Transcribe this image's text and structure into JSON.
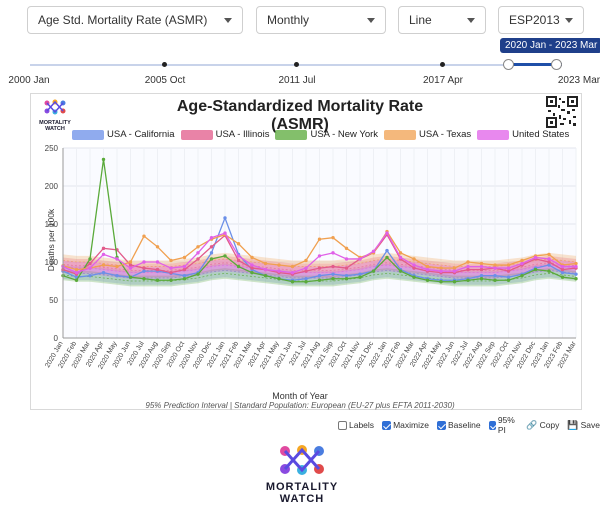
{
  "controls": {
    "metric": "Age Std. Mortality Rate (ASMR)",
    "period": "Monthly",
    "chart_style": "Line",
    "standard": "ESP2013"
  },
  "slider": {
    "ticks": [
      "2000 Jan",
      "2005 Oct",
      "2011 Jul",
      "2017 Apr",
      "2023 Mar"
    ],
    "range_label": "2020 Jan - 2023 Mar"
  },
  "brand": {
    "line1": "MORTALITY",
    "line2": "WATCH"
  },
  "toolbar": {
    "labels": "Labels",
    "maximize": "Maximize",
    "baseline": "Baseline",
    "pi": "95% PI",
    "copy": "Copy",
    "save": "Save"
  },
  "colors": {
    "california": "#6b8fe8",
    "illinois": "#e25a8a",
    "new_york": "#5aaa3a",
    "texas": "#f0a050",
    "united_states": "#e060e8",
    "accent": "#1f3f8a"
  },
  "chart_data": {
    "type": "line",
    "title": "Age-Standardized Mortality Rate (ASMR)",
    "xlabel": "Month of Year",
    "ylabel": "Deaths per 100k",
    "caption": "95% Prediction Interval | Standard Population: European (EU-27 plus EFTA 2011-2030)",
    "ylim": [
      0,
      250
    ],
    "yticks": [
      0,
      50,
      100,
      150,
      200,
      250
    ],
    "grid": true,
    "legend_position": "top",
    "categories": [
      "2020 Jan",
      "2020 Feb",
      "2020 Mar",
      "2020 Apr",
      "2020 May",
      "2020 Jun",
      "2020 Jul",
      "2020 Aug",
      "2020 Sep",
      "2020 Oct",
      "2020 Nov",
      "2020 Dec",
      "2021 Jan",
      "2021 Feb",
      "2021 Mar",
      "2021 Apr",
      "2021 May",
      "2021 Jun",
      "2021 Jul",
      "2021 Aug",
      "2021 Sep",
      "2021 Oct",
      "2021 Nov",
      "2021 Dec",
      "2022 Jan",
      "2022 Feb",
      "2022 Mar",
      "2022 Apr",
      "2022 May",
      "2022 Jun",
      "2022 Jul",
      "2022 Aug",
      "2022 Sep",
      "2022 Oct",
      "2022 Nov",
      "2022 Dec",
      "2023 Jan",
      "2023 Feb",
      "2023 Mar"
    ],
    "series": [
      {
        "name": "USA - California",
        "color": "#6b8fe8",
        "values": [
          88,
          80,
          82,
          86,
          82,
          80,
          88,
          88,
          85,
          82,
          86,
          112,
          158,
          110,
          90,
          82,
          78,
          76,
          78,
          82,
          84,
          82,
          84,
          88,
          115,
          90,
          82,
          78,
          76,
          76,
          78,
          82,
          82,
          80,
          84,
          92,
          96,
          86,
          84
        ]
      },
      {
        "name": "USA - Illinois",
        "color": "#e25a8a",
        "values": [
          90,
          84,
          98,
          118,
          116,
          96,
          92,
          90,
          86,
          90,
          104,
          120,
          135,
          102,
          92,
          90,
          86,
          84,
          88,
          92,
          94,
          92,
          104,
          112,
          136,
          104,
          92,
          88,
          86,
          86,
          90,
          90,
          92,
          88,
          96,
          104,
          100,
          90,
          92
        ]
      },
      {
        "name": "USA - New York",
        "color": "#5aaa3a",
        "values": [
          82,
          76,
          104,
          235,
          106,
          80,
          78,
          76,
          76,
          78,
          84,
          104,
          108,
          94,
          86,
          82,
          78,
          74,
          74,
          76,
          78,
          78,
          80,
          88,
          106,
          88,
          80,
          76,
          74,
          74,
          76,
          78,
          76,
          76,
          82,
          90,
          88,
          80,
          78
        ]
      },
      {
        "name": "USA - Texas",
        "color": "#f0a050",
        "values": [
          95,
          90,
          92,
          96,
          94,
          100,
          134,
          120,
          102,
          106,
          120,
          130,
          136,
          124,
          106,
          98,
          96,
          94,
          102,
          130,
          132,
          118,
          106,
          112,
          140,
          112,
          104,
          94,
          92,
          92,
          100,
          98,
          96,
          96,
          102,
          108,
          110,
          96,
          98
        ]
      },
      {
        "name": "United States",
        "color": "#e060e8",
        "values": [
          94,
          86,
          92,
          110,
          104,
          92,
          100,
          100,
          92,
          94,
          112,
          132,
          138,
          108,
          96,
          90,
          88,
          86,
          92,
          108,
          112,
          104,
          104,
          114,
          138,
          106,
          96,
          90,
          88,
          88,
          94,
          94,
          92,
          92,
          98,
          106,
          104,
          94,
          94
        ]
      }
    ],
    "baseline_band": {
      "center": [
        92,
        90,
        90,
        88,
        86,
        84,
        84,
        84,
        84,
        86,
        88,
        92,
        94,
        92,
        90,
        88,
        86,
        84,
        84,
        84,
        84,
        86,
        88,
        92,
        94,
        92,
        90,
        88,
        86,
        84,
        84,
        84,
        84,
        86,
        88,
        92,
        94,
        92,
        90
      ]
    }
  }
}
